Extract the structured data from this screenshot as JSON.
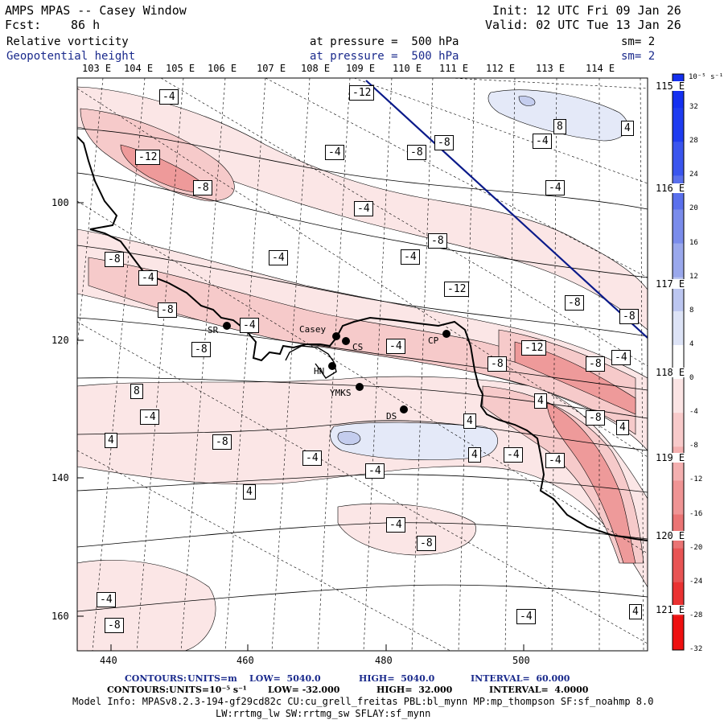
{
  "header": {
    "title": "AMPS MPAS -- Casey Window",
    "forecast_label": "Fcst:",
    "forecast_value": "86 h",
    "init": "Init: 12 UTC Fri 09 Jan 26",
    "valid": "Valid: 02 UTC Tue 13 Jan 26",
    "field1_name": "Relative vorticity",
    "field1_level": "at pressure =  500 hPa",
    "field1_sm": "sm= 2",
    "field2_name": "Geopotential height",
    "field2_level": "at pressure =  500 hPa",
    "field2_sm": "sm= 2"
  },
  "map": {
    "longitude_labels_top": [
      "103 E",
      "104 E",
      "105 E",
      "106 E",
      "107 E",
      "108 E",
      "109 E",
      "110 E",
      "111 E",
      "112 E",
      "113 E",
      "114 E"
    ],
    "longitude_labels_right": [
      "115 E",
      "116 E",
      "117 E",
      "118 E",
      "119 E",
      "120 E",
      "121 E"
    ],
    "x_ticks": [
      "440",
      "460",
      "480",
      "500"
    ],
    "y_ticks": [
      "100",
      "120",
      "140",
      "160"
    ],
    "stations": [
      {
        "code": "SR"
      },
      {
        "code": "Casey"
      },
      {
        "code": "CS"
      },
      {
        "code": "CP"
      },
      {
        "code": "HN"
      },
      {
        "code": "YMKS"
      },
      {
        "code": "DS"
      }
    ],
    "contour_labels": [
      "-4",
      "-12",
      "8",
      "4",
      "-8",
      "-12",
      "-4",
      "-8",
      "-4",
      "-8",
      "-4",
      "-4",
      "-8",
      "-4",
      "-4",
      "-8",
      "-4",
      "-12",
      "-8",
      "-8",
      "-4",
      "-8",
      "-4",
      "-8",
      "-12",
      "-8",
      "-8",
      "-4",
      "4",
      "4",
      "8",
      "-4",
      "-8",
      "4",
      "4",
      "4",
      "-8",
      "-4",
      "-4",
      "-4",
      "-4",
      "4",
      "-4",
      "-8",
      "-4",
      "-8",
      "-4",
      "4"
    ],
    "colors": {
      "pos_light": "#e4e9f8",
      "pos_mid": "#c4cdee",
      "pos_strong": "#9aa6e4",
      "neg_light": "#fbe6e6",
      "neg_mid": "#f6caca",
      "neg_strong": "#ee9a9a",
      "trajectory": "#0a1a8a"
    }
  },
  "colorbar": {
    "unit": "10⁻⁵ s⁻¹",
    "labels": [
      "32",
      "28",
      "24",
      "20",
      "16",
      "12",
      "8",
      "4",
      "0",
      "-4",
      "-8",
      "-12",
      "-16",
      "-20",
      "-24",
      "-28",
      "-32"
    ],
    "colors": [
      "#1430f0",
      "#1e3cf0",
      "#3a55ee",
      "#5a70ec",
      "#7a8ceb",
      "#9aa8ec",
      "#bcc6f0",
      "#dde3f6",
      "#ffffff",
      "#fbe4e4",
      "#f8caca",
      "#f4b0b0",
      "#ef9494",
      "#ea7474",
      "#e85454",
      "#ea3232",
      "#ee1010"
    ]
  },
  "footer": {
    "contours1_label": "CONTOURS:",
    "contours1_units": "UNITS=m",
    "contours1_low": "LOW=  5040.0",
    "contours1_high": "HIGH=  5040.0",
    "contours1_interval": "INTERVAL=  60.000",
    "contours2_label": "CONTOURS:",
    "contours2_units": "UNITS=10⁻⁵ s⁻¹",
    "contours2_low": "LOW= -32.000",
    "contours2_high": "HIGH=  32.000",
    "contours2_interval": "INTERVAL=  4.0000",
    "model_info_1": "Model Info: MPASv8.2.3-194-gf29cd82c CU:cu_grell_freitas PBL:bl_mynn MP:mp_thompson SF:sf_noahmp 8.0",
    "model_info_2": "LW:rrtmg_lw SW:rrtmg_sw SFLAY:sf_mynn"
  }
}
